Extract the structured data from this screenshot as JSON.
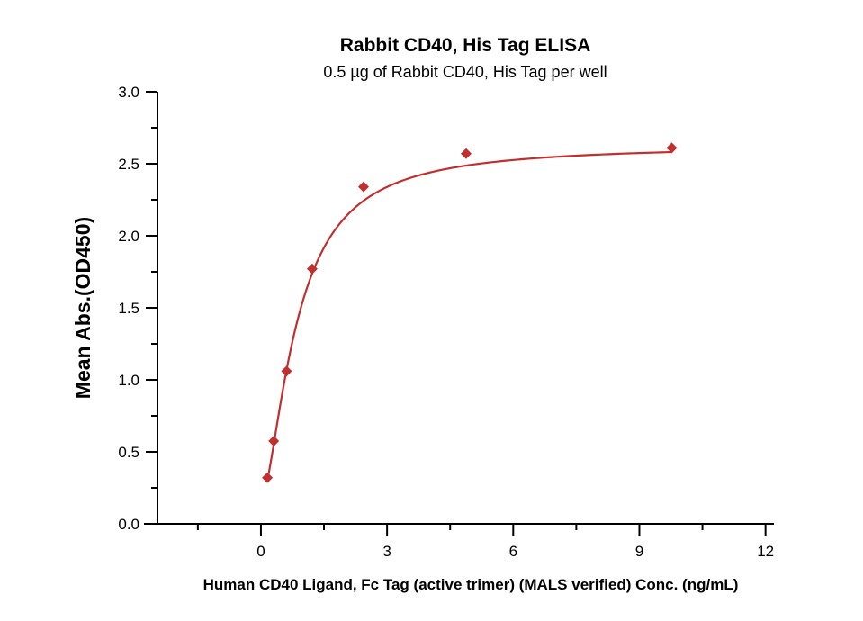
{
  "chart_data": {
    "type": "scatter",
    "title": "Rabbit CD40, His Tag ELISA",
    "subtitle": "0.5 µg of Rabbit CD40, His Tag per well",
    "xlabel": "Human CD40 Ligand, Fc Tag (active trimer) (MALS verified) Conc. (ng/mL)",
    "ylabel": "Mean Abs.(OD450)",
    "xlim": [
      -2.46,
      12.2
    ],
    "ylim": [
      0,
      3.0
    ],
    "xticks": [
      "0",
      "3",
      "6",
      "9",
      "12"
    ],
    "yticks": [
      "0.0",
      "0.5",
      "1.0",
      "1.5",
      "2.0",
      "2.5",
      "3.0"
    ],
    "grid": false,
    "color": "#c0302f",
    "series": [
      {
        "name": "Rabbit CD40, His Tag",
        "x": [
          0.153,
          0.305,
          0.61,
          1.22,
          2.44,
          4.88,
          9.77
        ],
        "y": [
          0.32,
          0.575,
          1.06,
          1.77,
          2.34,
          2.57,
          2.61
        ],
        "fit": {
          "model": "4PL",
          "bottom": 0.15,
          "top": 2.63,
          "ec50": 0.85,
          "hill": 1.6
        }
      }
    ]
  }
}
